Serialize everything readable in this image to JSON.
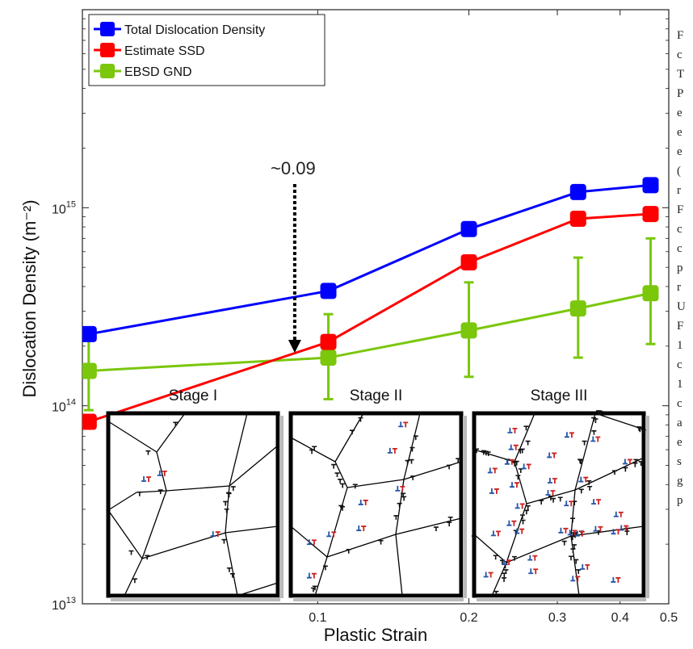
{
  "chart_data": {
    "type": "line",
    "xlabel": "Plastic Strain",
    "ylabel": "Dislocation Density (m⁻²)",
    "xscale": "log",
    "yscale": "log",
    "xlim": [
      0.034,
      0.5
    ],
    "ylim": [
      10000000000000.0,
      1e+16
    ],
    "x_ticks": [
      {
        "value": 0.1,
        "label": "0.1"
      },
      {
        "value": 0.2,
        "label": "0.2"
      },
      {
        "value": 0.3,
        "label": "0.3"
      },
      {
        "value": 0.4,
        "label": "0.4"
      },
      {
        "value": 0.5,
        "label": "0.5"
      }
    ],
    "y_ticks": [
      {
        "value": 10000000000000.0,
        "base": "10",
        "exp": "13"
      },
      {
        "value": 100000000000000.0,
        "base": "10",
        "exp": "14"
      },
      {
        "value": 1000000000000000.0,
        "base": "10",
        "exp": "15"
      }
    ],
    "legend_placement": "top-left",
    "series": [
      {
        "name": "Total Dislocation Density",
        "color": "#0000ff",
        "x": [
          0.035,
          0.105,
          0.2,
          0.33,
          0.46
        ],
        "y": [
          230000000000000.0,
          380000000000000.0,
          780000000000000.0,
          1200000000000000.0,
          1300000000000000.0
        ]
      },
      {
        "name": "Estimate SSD",
        "color": "#ff0000",
        "x": [
          0.035,
          0.105,
          0.2,
          0.33,
          0.46
        ],
        "y": [
          83000000000000.0,
          210000000000000.0,
          530000000000000.0,
          880000000000000.0,
          930000000000000.0
        ]
      },
      {
        "name": "EBSD GND",
        "color": "#7ac70c",
        "x": [
          0.035,
          0.105,
          0.2,
          0.33,
          0.46
        ],
        "y": [
          150000000000000.0,
          175000000000000.0,
          240000000000000.0,
          310000000000000.0,
          370000000000000.0
        ],
        "y_upper": [
          240000000000000.0,
          290000000000000.0,
          420000000000000.0,
          560000000000000.0,
          700000000000000.0
        ],
        "y_lower": [
          95000000000000.0,
          108000000000000.0,
          140000000000000.0,
          175000000000000.0,
          205000000000000.0
        ]
      }
    ],
    "annotation": {
      "text": "~0.09",
      "x": 0.09,
      "y": 175000000000000.0,
      "arrow": "dashed-down"
    },
    "insets": [
      {
        "title": "Stage I"
      },
      {
        "title": "Stage II"
      },
      {
        "title": "Stage III"
      }
    ],
    "side_text_fragments": [
      "F",
      "c",
      "T",
      "P",
      "e",
      "e",
      "e",
      "(",
      "r",
      "F",
      "c",
      "c",
      "p",
      "r",
      "U",
      "F",
      "1",
      "c",
      "1",
      "c",
      "a",
      "e",
      "s",
      "g",
      "p"
    ],
    "colors": {
      "gnd": "#7ac70c",
      "total": "#0000ff",
      "ssd": "#ff0000",
      "positive_dislocation": "#cc2222",
      "negative_dislocation": "#2255aa"
    }
  }
}
